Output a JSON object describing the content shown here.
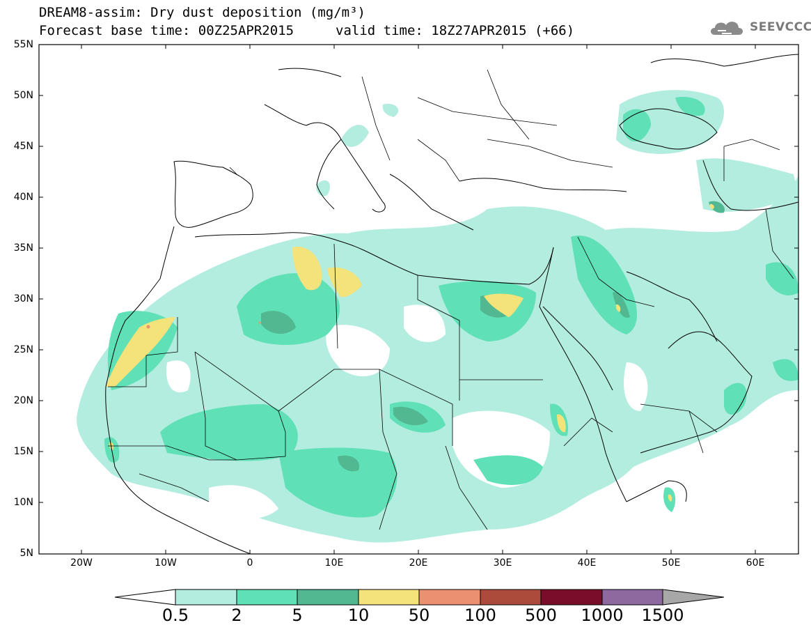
{
  "header": {
    "title_line1": "DREAM8-assim: Dry dust deposition (mg/m³)",
    "forecast_base": "Forecast base time: 00Z25APR2015",
    "valid_time": "valid time: 18Z27APR2015 (+66)",
    "logo_text": "SEEVCCC"
  },
  "axes": {
    "lat_labels": [
      "55N",
      "50N",
      "45N",
      "40N",
      "35N",
      "30N",
      "25N",
      "20N",
      "15N",
      "10N",
      "5N"
    ],
    "lon_labels": [
      "20W",
      "10W",
      "0",
      "10E",
      "20E",
      "30E",
      "40E",
      "50E",
      "60E"
    ]
  },
  "colorbar": {
    "labels": [
      "0.5",
      "2",
      "5",
      "10",
      "50",
      "100",
      "500",
      "1000",
      "1500"
    ],
    "colors": [
      "#ffffff",
      "#b3ede0",
      "#5fe0b6",
      "#52b891",
      "#f4e27a",
      "#eb9170",
      "#ac4a3c",
      "#7a0d2a",
      "#8e69a0",
      "#a7a7a7"
    ]
  }
}
